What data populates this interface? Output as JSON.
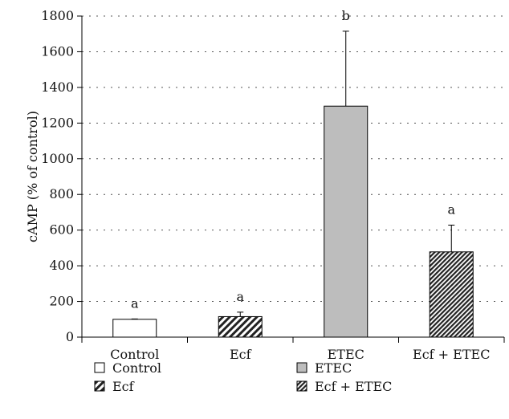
{
  "chart_data": {
    "type": "bar",
    "ylabel": "cAMP (% of control)",
    "ylim": [
      0,
      1800
    ],
    "yticks": [
      0,
      200,
      400,
      600,
      800,
      1000,
      1200,
      1400,
      1600,
      1800
    ],
    "grid": true,
    "legend_position": "bottom",
    "categories": [
      "Control",
      "Ecf",
      "ETEC",
      "Ecf + ETEC"
    ],
    "values": [
      100,
      115,
      1295,
      478
    ],
    "errors": [
      2,
      25,
      420,
      150
    ],
    "significance_labels": [
      "a",
      "a",
      "b",
      "a"
    ],
    "fills": [
      {
        "pattern": "solid",
        "color": "#ffffff"
      },
      {
        "pattern": "diagonal",
        "color": "#ffffff"
      },
      {
        "pattern": "solid",
        "color": "#bdbdbd"
      },
      {
        "pattern": "diagonal-dense",
        "color": "#ffffff"
      }
    ],
    "legend": [
      {
        "label": "Control",
        "fill_index": 0
      },
      {
        "label": "ETEC",
        "fill_index": 2
      },
      {
        "label": "Ecf",
        "fill_index": 1
      },
      {
        "label": "Ecf + ETEC",
        "fill_index": 3
      }
    ]
  }
}
